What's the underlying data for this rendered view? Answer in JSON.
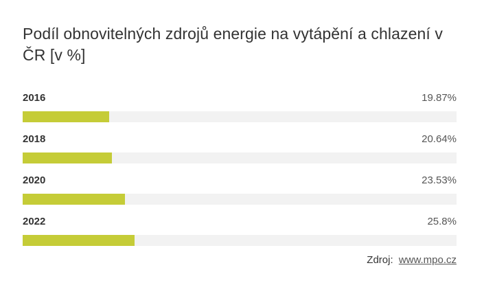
{
  "title": "Podíl obnovitelných zdrojů energie na vytápění a chlazení v ČR [v %]",
  "colors": {
    "bar": "#c5cc37",
    "track": "#f2f2f2"
  },
  "chart_data": {
    "type": "bar",
    "orientation": "horizontal",
    "title": "Podíl obnovitelných zdrojů energie na vytápění a chlazení v ČR [v %]",
    "categories": [
      "2016",
      "2018",
      "2020",
      "2022"
    ],
    "values": [
      19.87,
      20.64,
      23.53,
      25.8
    ],
    "value_labels": [
      "19.87%",
      "20.64%",
      "23.53%",
      "25.8%"
    ],
    "xlim": [
      0,
      100
    ],
    "xlabel": "",
    "ylabel": "",
    "grid": false,
    "legend": "none"
  },
  "source": {
    "label": "Zdroj:",
    "link_text": "www.mpo.cz"
  }
}
